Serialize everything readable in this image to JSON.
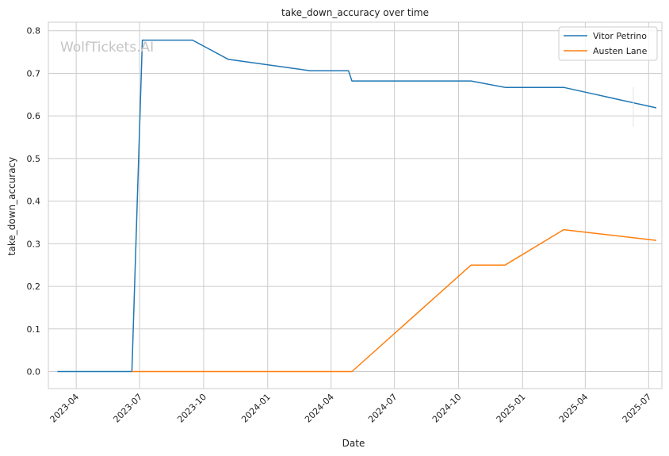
{
  "watermark": "WolfTickets.AI",
  "chart_data": {
    "type": "line",
    "title": "take_down_accuracy over time",
    "xlabel": "Date",
    "ylabel": "take_down_accuracy",
    "x_ticks": [
      "2023-04",
      "2023-07",
      "2023-10",
      "2024-01",
      "2024-04",
      "2024-07",
      "2024-10",
      "2025-01",
      "2025-04",
      "2025-07"
    ],
    "y_ticks": [
      "0.0",
      "0.1",
      "0.2",
      "0.3",
      "0.4",
      "0.5",
      "0.6",
      "0.7",
      "0.8"
    ],
    "xlim": [
      "2023-02-20",
      "2025-07-20"
    ],
    "ylim": [
      -0.04,
      0.82
    ],
    "grid": true,
    "legend_position": "top-right",
    "series": [
      {
        "name": "Vitor Petrino",
        "color": "#1f77b4",
        "points": [
          [
            "2023-03-05",
            0.0
          ],
          [
            "2023-06-20",
            0.0
          ],
          [
            "2023-07-05",
            0.778
          ],
          [
            "2023-09-15",
            0.778
          ],
          [
            "2023-11-05",
            0.733
          ],
          [
            "2024-03-02",
            0.706
          ],
          [
            "2024-04-26",
            0.706
          ],
          [
            "2024-05-01",
            0.682
          ],
          [
            "2024-10-19",
            0.682
          ],
          [
            "2024-12-07",
            0.667
          ],
          [
            "2025-03-01",
            0.667
          ],
          [
            "2025-07-12",
            0.619
          ]
        ]
      },
      {
        "name": "Austen Lane",
        "color": "#ff7f0e",
        "points": [
          [
            "2023-06-20",
            0.0
          ],
          [
            "2024-05-01",
            0.0
          ],
          [
            "2024-10-19",
            0.25
          ],
          [
            "2024-12-07",
            0.25
          ],
          [
            "2025-03-01",
            0.333
          ],
          [
            "2025-07-12",
            0.308
          ]
        ]
      }
    ]
  }
}
